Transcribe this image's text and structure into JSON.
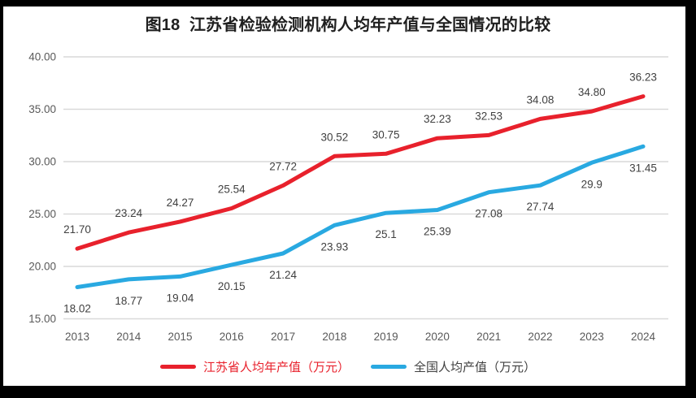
{
  "title": "图18  江苏省检验检测机构人均年产值与全国情况的比较",
  "frame": {
    "border_color": "#000000",
    "background": "#ffffff"
  },
  "chart_data": {
    "type": "line",
    "categories": [
      "2013",
      "2014",
      "2015",
      "2016",
      "2017",
      "2018",
      "2019",
      "2020",
      "2021",
      "2022",
      "2023",
      "2024"
    ],
    "series": [
      {
        "name": "江苏省人均年产值（万元）",
        "color": "#e8212c",
        "legend_text_color": "#e8212c",
        "label_position": "above",
        "values": [
          21.7,
          23.24,
          24.27,
          25.54,
          27.72,
          30.52,
          30.75,
          32.23,
          32.53,
          34.08,
          34.8,
          36.23
        ],
        "labels": [
          "21.70",
          "23.24",
          "24.27",
          "25.54",
          "27.72",
          "30.52",
          "30.75",
          "32.23",
          "32.53",
          "34.08",
          "34.80",
          "36.23"
        ]
      },
      {
        "name": "全国人均产值（万元）",
        "color": "#29a9e1",
        "legend_text_color": "#404040",
        "label_position": "below",
        "values": [
          18.02,
          18.77,
          19.04,
          20.15,
          21.24,
          23.93,
          25.1,
          25.39,
          27.08,
          27.74,
          29.9,
          31.45
        ],
        "labels": [
          "18.02",
          "18.77",
          "19.04",
          "20.15",
          "21.24",
          "23.93",
          "25.1",
          "25.39",
          "27.08",
          "27.74",
          "29.9",
          "31.45"
        ]
      }
    ],
    "xlabel": "",
    "ylabel": "",
    "ylim": [
      15,
      40
    ],
    "ytick_values": [
      15,
      20,
      25,
      30,
      35,
      40
    ],
    "ytick_labels": [
      "15.00",
      "20.00",
      "25.00",
      "30.00",
      "35.00",
      "40.00"
    ],
    "grid": true,
    "legend_position": "bottom",
    "gridline_color": "#d9d9d9",
    "axis_label_color": "#595959",
    "data_label_color": "#404040",
    "line_width": 5
  }
}
